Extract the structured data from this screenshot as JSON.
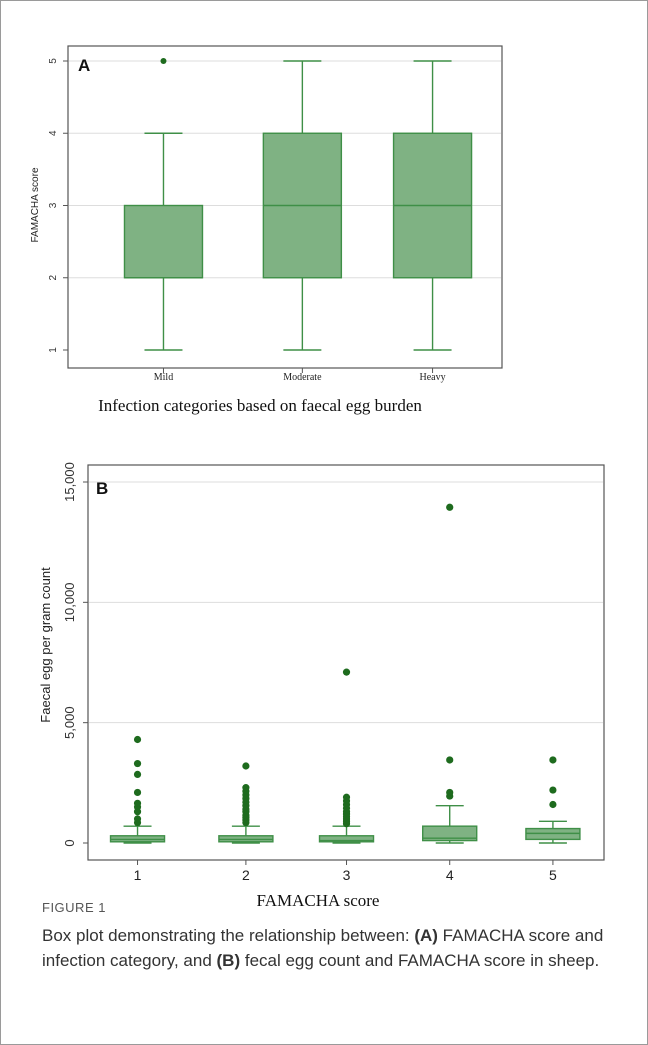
{
  "colors": {
    "box_fill": "#7fb283",
    "box_stroke": "#3f8f47",
    "outlier": "#1e6b1e",
    "grid": "#dddddd",
    "frame": "#9a9a9a"
  },
  "chart_data": [
    {
      "type": "box",
      "panel_label": "A",
      "title": "",
      "xlabel": "Infection categories based on faecal egg burden",
      "ylabel": "FAMACHA score",
      "ylim": [
        1,
        5
      ],
      "yticks": [
        "1",
        "2",
        "3",
        "4",
        "5"
      ],
      "ytick_values": [
        1,
        2,
        3,
        4,
        5
      ],
      "grid": true,
      "categories": [
        "Mild",
        "Moderate",
        "Heavy"
      ],
      "boxes": [
        {
          "min": 1,
          "q1": 2,
          "median": 2,
          "q3": 3,
          "max": 4,
          "outliers": [
            5
          ]
        },
        {
          "min": 1,
          "q1": 2,
          "median": 3,
          "q3": 4,
          "max": 5,
          "outliers": []
        },
        {
          "min": 1,
          "q1": 2,
          "median": 3,
          "q3": 4,
          "max": 5,
          "outliers": []
        }
      ]
    },
    {
      "type": "box",
      "panel_label": "B",
      "title": "",
      "xlabel": "FAMACHA score",
      "ylabel": "Faecal egg per gram count",
      "ylim": [
        0,
        15000
      ],
      "yticks": [
        "0",
        "5,000",
        "10,000",
        "15,000"
      ],
      "ytick_values": [
        0,
        5000,
        10000,
        15000
      ],
      "grid": true,
      "categories": [
        "1",
        "2",
        "3",
        "4",
        "5"
      ],
      "boxes": [
        {
          "min": 0,
          "q1": 50,
          "median": 150,
          "q3": 300,
          "max": 700,
          "outliers": [
            850,
            1000,
            1300,
            1500,
            1650,
            2100,
            2850,
            3300,
            4300
          ]
        },
        {
          "min": 0,
          "q1": 50,
          "median": 150,
          "q3": 300,
          "max": 700,
          "outliers": [
            850,
            950,
            1050,
            1150,
            1300,
            1400,
            1550,
            1700,
            1850,
            2000,
            2150,
            2300,
            3200
          ]
        },
        {
          "min": 0,
          "q1": 50,
          "median": 100,
          "q3": 300,
          "max": 700,
          "outliers": [
            800,
            900,
            1000,
            1100,
            1200,
            1300,
            1450,
            1600,
            1750,
            1900,
            7100
          ]
        },
        {
          "min": 0,
          "q1": 100,
          "median": 200,
          "q3": 700,
          "max": 1550,
          "outliers": [
            1950,
            2100,
            3450,
            13950
          ]
        },
        {
          "min": 0,
          "q1": 150,
          "median": 400,
          "q3": 600,
          "max": 900,
          "outliers": [
            1600,
            2200,
            3450
          ]
        }
      ]
    }
  ],
  "caption": {
    "label": "FIGURE 1",
    "text_1": "Box plot demonstrating the relationship between: ",
    "bold_a": "(A)",
    "text_2": " FAMACHA score and infection category, and ",
    "bold_b": "(B)",
    "text_3": " fecal egg count and FAMACHA score in sheep."
  }
}
